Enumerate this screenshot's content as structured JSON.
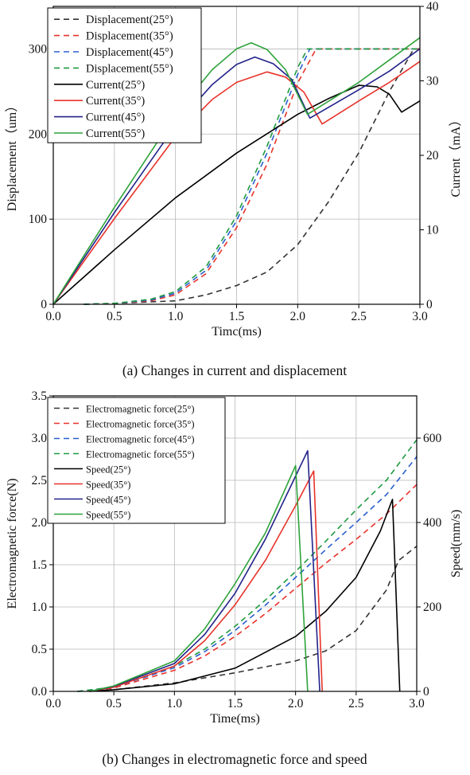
{
  "chart_data": [
    {
      "caption": "(a) Changes in current and displacement",
      "type": "line",
      "xlabel": "Timc(ms)",
      "ylabel": "Displacement（um）",
      "y2label": "Current（mA）",
      "xlim": [
        0,
        3
      ],
      "ylim": [
        0,
        350
      ],
      "y2lim": [
        0,
        40
      ],
      "xticks": [
        "0.0",
        "0.5",
        "1.0",
        "1.5",
        "2.0",
        "2.5",
        "3.0"
      ],
      "yticks": [
        "0",
        "100",
        "200",
        "300"
      ],
      "y2ticks": [
        "0",
        "10",
        "20",
        "30",
        "40"
      ],
      "legend_position": "top-left",
      "series": [
        {
          "name": "Displacement(25°)",
          "axis": "left",
          "dash": true,
          "color": "#333333",
          "x": [
            0.25,
            0.5,
            1.0,
            1.25,
            1.5,
            1.75,
            2.0,
            2.25,
            2.5,
            2.75,
            2.95,
            3.0
          ],
          "y": [
            0,
            1,
            4,
            11,
            22,
            38,
            70,
            120,
            178,
            250,
            300,
            300
          ]
        },
        {
          "name": "Displacement(35°)",
          "axis": "left",
          "dash": true,
          "color": "#e8332a",
          "x": [
            0.25,
            0.5,
            0.8,
            1.0,
            1.25,
            1.5,
            1.75,
            2.0,
            2.15,
            2.25,
            3.0
          ],
          "y": [
            0,
            1,
            4,
            11,
            36,
            90,
            165,
            260,
            300,
            300,
            300
          ]
        },
        {
          "name": "Displacement(45°)",
          "axis": "left",
          "dash": true,
          "color": "#2b5fcf",
          "x": [
            0.25,
            0.5,
            0.8,
            1.0,
            1.25,
            1.5,
            1.75,
            2.0,
            2.1,
            3.0
          ],
          "y": [
            0,
            1,
            5,
            13,
            40,
            98,
            178,
            270,
            300,
            300
          ]
        },
        {
          "name": "Displacement(55°)",
          "axis": "left",
          "dash": true,
          "color": "#1e9a40",
          "x": [
            0.25,
            0.5,
            0.8,
            1.0,
            1.25,
            1.5,
            1.75,
            2.0,
            2.08,
            3.0
          ],
          "y": [
            0,
            1,
            6,
            15,
            44,
            104,
            186,
            278,
            300,
            300
          ]
        },
        {
          "name": "Current(25°)",
          "axis": "right",
          "dash": false,
          "color": "#000000",
          "x": [
            0,
            0.5,
            1.0,
            1.5,
            2.0,
            2.25,
            2.5,
            2.65,
            2.75,
            2.85,
            3.0
          ],
          "y": [
            0,
            7.3,
            14.3,
            20.3,
            25.5,
            27.6,
            29.4,
            29.2,
            28.2,
            25.8,
            27.3
          ]
        },
        {
          "name": "Current(35°)",
          "axis": "right",
          "dash": false,
          "color": "#e8332a",
          "x": [
            0,
            0.5,
            1.0,
            1.3,
            1.5,
            1.75,
            1.9,
            2.05,
            2.2,
            2.5,
            2.75,
            3.0
          ],
          "y": [
            0,
            11.5,
            22.5,
            27.5,
            29.8,
            31.2,
            30.5,
            28.5,
            24.2,
            27.3,
            29.8,
            32.6
          ]
        },
        {
          "name": "Current(45°)",
          "axis": "right",
          "dash": false,
          "color": "#22238a",
          "x": [
            0,
            0.5,
            1.0,
            1.3,
            1.5,
            1.65,
            1.8,
            1.95,
            2.1,
            2.5,
            2.75,
            3.0
          ],
          "y": [
            0,
            12.3,
            24,
            29.5,
            32.2,
            33.2,
            32.3,
            30.2,
            25,
            28.8,
            31.3,
            34.3
          ]
        },
        {
          "name": "Current(55°)",
          "axis": "right",
          "dash": false,
          "color": "#2ea33a",
          "x": [
            0,
            0.5,
            1.0,
            1.3,
            1.5,
            1.62,
            1.75,
            1.9,
            2.08,
            2.5,
            2.75,
            3.0
          ],
          "y": [
            0,
            13,
            25.5,
            31.5,
            34.3,
            35.1,
            34.2,
            31.5,
            25.5,
            29.8,
            32.8,
            35.8
          ]
        }
      ]
    },
    {
      "caption": "(b) Changes in electromagnetic force and speed",
      "type": "line",
      "xlabel": "Time(ms)",
      "ylabel": "Electromagnetic force(N)",
      "y2label": "Speed(mm/s)",
      "xlim": [
        0,
        3
      ],
      "ylim": [
        0,
        3.5
      ],
      "y2lim": [
        0,
        700
      ],
      "xticks": [
        "0.0",
        "0.5",
        "1.0",
        "1.5",
        "2.0",
        "2.5",
        "3.0"
      ],
      "yticks": [
        "0.0",
        "0.5",
        "1.0",
        "1.5",
        "2.0",
        "2.5",
        "3.0",
        "3.5"
      ],
      "y2ticks": [
        "0",
        "200",
        "400",
        "600"
      ],
      "legend_position": "top-left",
      "series": [
        {
          "name": "Electromagnetic force(25°)",
          "axis": "left",
          "dash": true,
          "color": "#333333",
          "x": [
            0.2,
            0.5,
            1.0,
            1.5,
            2.0,
            2.25,
            2.5,
            2.75,
            2.85,
            3.0
          ],
          "y": [
            0,
            0.02,
            0.1,
            0.22,
            0.36,
            0.48,
            0.72,
            1.2,
            1.55,
            1.72
          ]
        },
        {
          "name": "Electromagnetic force(35°)",
          "axis": "left",
          "dash": true,
          "color": "#e8332a",
          "x": [
            0.2,
            0.5,
            1.0,
            1.25,
            1.5,
            1.75,
            2.0,
            2.25,
            2.5,
            2.75,
            3.0
          ],
          "y": [
            0,
            0.04,
            0.25,
            0.42,
            0.65,
            0.92,
            1.22,
            1.52,
            1.8,
            2.1,
            2.45
          ]
        },
        {
          "name": "Electromagnetic force(45°)",
          "axis": "left",
          "dash": true,
          "color": "#2b5fcf",
          "x": [
            0.2,
            0.5,
            1.0,
            1.25,
            1.5,
            1.75,
            2.0,
            2.25,
            2.5,
            2.75,
            3.0
          ],
          "y": [
            0,
            0.05,
            0.28,
            0.47,
            0.72,
            1.02,
            1.35,
            1.68,
            2.0,
            2.33,
            2.78
          ]
        },
        {
          "name": "Electromagnetic force(55°)",
          "axis": "left",
          "dash": true,
          "color": "#1e9a40",
          "x": [
            0.2,
            0.5,
            1.0,
            1.25,
            1.5,
            1.75,
            2.0,
            2.25,
            2.5,
            2.75,
            3.0
          ],
          "y": [
            0,
            0.05,
            0.3,
            0.5,
            0.77,
            1.08,
            1.42,
            1.78,
            2.15,
            2.5,
            2.98
          ]
        },
        {
          "name": "Speed(25°)",
          "axis": "right",
          "dash": false,
          "color": "#000000",
          "x": [
            0.3,
            0.5,
            1.0,
            1.5,
            2.0,
            2.25,
            2.5,
            2.7,
            2.8,
            2.86
          ],
          "y": [
            0,
            4,
            18,
            55,
            130,
            190,
            270,
            380,
            455,
            0
          ]
        },
        {
          "name": "Speed(35°)",
          "axis": "right",
          "dash": false,
          "color": "#e8332a",
          "x": [
            0.3,
            0.5,
            1.0,
            1.25,
            1.5,
            1.75,
            2.0,
            2.15,
            2.22
          ],
          "y": [
            0,
            10,
            60,
            120,
            205,
            310,
            440,
            522,
            0
          ]
        },
        {
          "name": "Speed(45°)",
          "axis": "right",
          "dash": false,
          "color": "#22238a",
          "x": [
            0.3,
            0.5,
            1.0,
            1.25,
            1.5,
            1.75,
            1.95,
            2.1,
            2.2
          ],
          "y": [
            0,
            12,
            66,
            135,
            232,
            360,
            480,
            570,
            0
          ]
        },
        {
          "name": "Speed(55°)",
          "axis": "right",
          "dash": false,
          "color": "#2ea33a",
          "x": [
            0.3,
            0.5,
            1.0,
            1.25,
            1.5,
            1.75,
            1.9,
            2.0,
            2.1
          ],
          "y": [
            0,
            13,
            72,
            148,
            255,
            375,
            470,
            535,
            0
          ]
        }
      ]
    }
  ]
}
